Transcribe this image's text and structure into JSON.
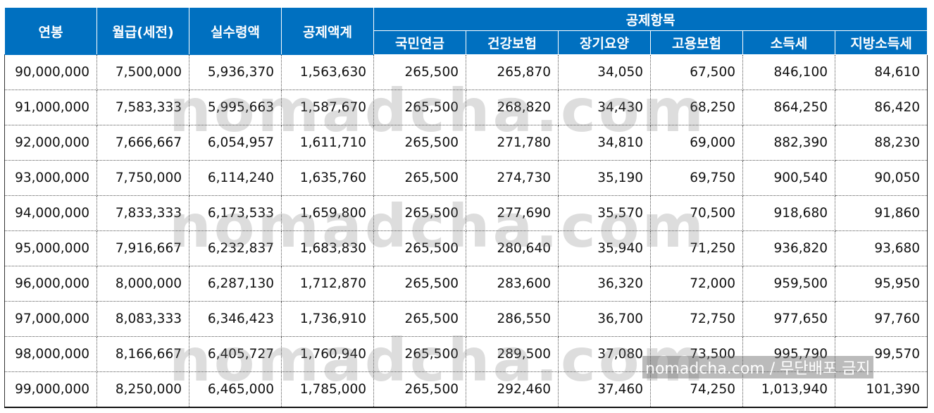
{
  "columns": {
    "annual": "연봉",
    "monthly": "월급(세전)",
    "net": "실수령액",
    "deduction_total": "공제액계",
    "deduction_group": "공제항목",
    "pension": "국민연금",
    "health": "건강보험",
    "longterm": "장기요양",
    "employment": "고용보험",
    "income_tax": "소득세",
    "local_tax": "지방소득세"
  },
  "rows": [
    [
      "90,000,000",
      "7,500,000",
      "5,936,370",
      "1,563,630",
      "265,500",
      "265,870",
      "34,050",
      "67,500",
      "846,100",
      "84,610"
    ],
    [
      "91,000,000",
      "7,583,333",
      "5,995,663",
      "1,587,670",
      "265,500",
      "268,820",
      "34,430",
      "68,250",
      "864,250",
      "86,420"
    ],
    [
      "92,000,000",
      "7,666,667",
      "6,054,957",
      "1,611,710",
      "265,500",
      "271,780",
      "34,810",
      "69,000",
      "882,390",
      "88,230"
    ],
    [
      "93,000,000",
      "7,750,000",
      "6,114,240",
      "1,635,760",
      "265,500",
      "274,730",
      "35,190",
      "69,750",
      "900,540",
      "90,050"
    ],
    [
      "94,000,000",
      "7,833,333",
      "6,173,533",
      "1,659,800",
      "265,500",
      "277,690",
      "35,570",
      "70,500",
      "918,680",
      "91,860"
    ],
    [
      "95,000,000",
      "7,916,667",
      "6,232,837",
      "1,683,830",
      "265,500",
      "280,640",
      "35,940",
      "71,250",
      "936,820",
      "93,680"
    ],
    [
      "96,000,000",
      "8,000,000",
      "6,287,130",
      "1,712,870",
      "265,500",
      "283,600",
      "36,320",
      "72,000",
      "959,500",
      "95,950"
    ],
    [
      "97,000,000",
      "8,083,333",
      "6,346,423",
      "1,736,910",
      "265,500",
      "286,550",
      "36,700",
      "72,750",
      "977,650",
      "97,760"
    ],
    [
      "98,000,000",
      "8,166,667",
      "6,405,727",
      "1,760,940",
      "265,500",
      "289,500",
      "37,080",
      "73,500",
      "995,790",
      "99,570"
    ],
    [
      "99,000,000",
      "8,250,000",
      "6,465,000",
      "1,785,000",
      "265,500",
      "292,460",
      "37,460",
      "74,250",
      "1,013,940",
      "101,390"
    ]
  ],
  "watermark": {
    "text": "nomadcha.com",
    "credit": "nomadcha.com / 무단배포 금지"
  },
  "colors": {
    "header_bg": "#0070c0",
    "header_text": "#ffffff"
  }
}
